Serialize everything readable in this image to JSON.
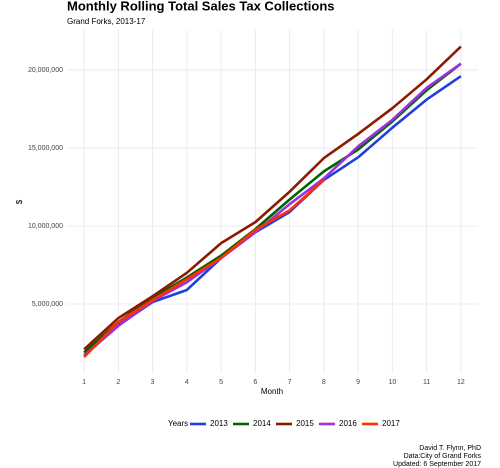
{
  "chart_data": {
    "type": "line",
    "title": "Monthly Rolling Total Sales Tax Collections",
    "subtitle": "Grand Forks, 2013-17",
    "x_label": "Month",
    "y_label": "$",
    "legend_title": "Years",
    "caption": [
      "David T. Flynn, PhD",
      "Data:City of Grand Forks",
      "Updated: 6 September 2017"
    ],
    "x": [
      1,
      2,
      3,
      4,
      5,
      6,
      7,
      8,
      9,
      10,
      11,
      12
    ],
    "xlim": [
      0.5,
      12.5
    ],
    "xticks": [
      1,
      2,
      3,
      4,
      5,
      6,
      7,
      8,
      9,
      10,
      11,
      12
    ],
    "ylim": [
      580000,
      22560000
    ],
    "yticks": [
      {
        "value": 5000000,
        "label": "5,000,000"
      },
      {
        "value": 10000000,
        "label": "10,000,000"
      },
      {
        "value": 15000000,
        "label": "15,000,000"
      },
      {
        "value": 20000000,
        "label": "20,000,000"
      }
    ],
    "grid": true,
    "legend": "bottom",
    "series": [
      {
        "name": "2013",
        "color": "#1f3fe0",
        "values": [
          1730000,
          3650000,
          5130000,
          5900000,
          7950000,
          9600000,
          10900000,
          12950000,
          14400000,
          16300000,
          18100000,
          19600000
        ]
      },
      {
        "name": "2014",
        "color": "#006400",
        "values": [
          1900000,
          3850000,
          5400000,
          6700000,
          8100000,
          9800000,
          11700000,
          13500000,
          14900000,
          16700000,
          18700000,
          20400000
        ]
      },
      {
        "name": "2015",
        "color": "#8b1a00",
        "values": [
          2100000,
          4100000,
          5500000,
          7000000,
          8900000,
          10250000,
          12200000,
          14350000,
          15900000,
          17550000,
          19400000,
          21500000
        ]
      },
      {
        "name": "2016",
        "color": "#9b30e0",
        "values": [
          1700000,
          3600000,
          5200000,
          6400000,
          7950000,
          9600000,
          11400000,
          13050000,
          15100000,
          16800000,
          18850000,
          20400000
        ]
      },
      {
        "name": "2017",
        "color": "#ff3000",
        "values": [
          1600000,
          3850000,
          5250000,
          6600000,
          7950000,
          9750000,
          11000000,
          12950000,
          null,
          null,
          null,
          null
        ]
      }
    ]
  }
}
